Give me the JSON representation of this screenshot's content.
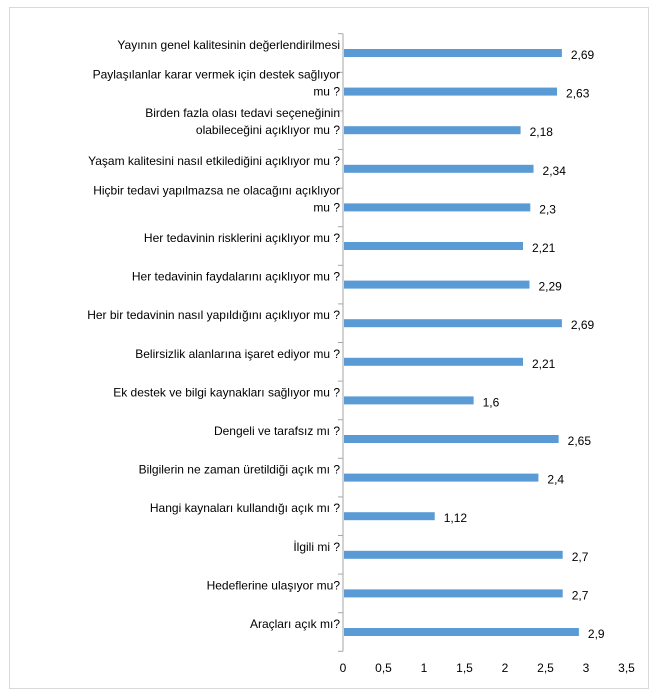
{
  "chart_data": {
    "type": "bar",
    "orientation": "horizontal",
    "title": "",
    "xlabel": "",
    "ylabel": "",
    "xlim": [
      0,
      3.5
    ],
    "ticks": [
      "0",
      "0,5",
      "1",
      "1,5",
      "2",
      "2,5",
      "3",
      "3,5"
    ],
    "tick_values": [
      0,
      0.5,
      1,
      1.5,
      2,
      2.5,
      3,
      3.5
    ],
    "grid": false,
    "legend": "none",
    "bar_color": "#5b9bd5",
    "categories": [
      [
        "Yayının genel kalitesinin değerlendirilmesi"
      ],
      [
        "Paylaşılanlar karar vermek için destek sağlıyor",
        "mu ?"
      ],
      [
        "Birden fazla olası tedavi seçeneğinin",
        "olabileceğini açıklıyor mu ?"
      ],
      [
        "Yaşam kalitesini  nasıl etkilediğini açıklıyor mu ?"
      ],
      [
        "Hiçbir tedavi yapılmazsa ne olacağını açıklıyor",
        "mu  ?"
      ],
      [
        "Her tedavinin risklerini açıklıyor mu ?"
      ],
      [
        "Her tedavinin faydalarını açıklıyor mu ?"
      ],
      [
        "Her bir tedavinin nasıl yapıldığını açıklıyor mu ?"
      ],
      [
        "Belirsizlik alanlarına işaret ediyor mu ?"
      ],
      [
        "Ek destek ve bilgi kaynakları sağlıyor mu ?"
      ],
      [
        "Dengeli ve tarafsız mı ?"
      ],
      [
        "Bilgilerin ne zaman üretildiği açık mı ?"
      ],
      [
        "Hangi kaynaları kullandığı açık mı ?"
      ],
      [
        "İlgili mi ?"
      ],
      [
        "Hedeflerine ulaşıyor mu?"
      ],
      [
        "Araçları açık mı?"
      ]
    ],
    "values": [
      2.69,
      2.63,
      2.18,
      2.34,
      2.3,
      2.21,
      2.29,
      2.69,
      2.21,
      1.6,
      2.65,
      2.4,
      1.12,
      2.7,
      2.7,
      2.9
    ],
    "value_labels": [
      "2,69",
      "2,63",
      "2,18",
      "2,34",
      "2,3",
      "2,21",
      "2,29",
      "2,69",
      "2,21",
      "1,6",
      "2,65",
      "2,4",
      "1,12",
      "2,7",
      "2,7",
      "2,9"
    ]
  }
}
